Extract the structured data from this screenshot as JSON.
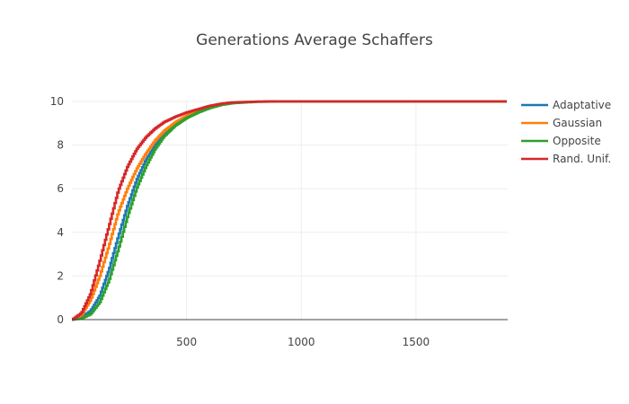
{
  "chart_data": {
    "type": "line",
    "title": "Generations Average Schaffers",
    "xlabel": "",
    "ylabel": "",
    "xlim": [
      0,
      1900
    ],
    "ylim": [
      0,
      10
    ],
    "x_ticks": [
      500,
      1000,
      1500
    ],
    "y_ticks": [
      0,
      2,
      4,
      6,
      8,
      10
    ],
    "grid": true,
    "legend_position": "right",
    "series": [
      {
        "name": "Adaptative",
        "color": "#1f77b4",
        "points": [
          [
            0,
            0
          ],
          [
            40,
            0.1
          ],
          [
            80,
            0.4
          ],
          [
            120,
            1.1
          ],
          [
            160,
            2.3
          ],
          [
            200,
            3.8
          ],
          [
            240,
            5.2
          ],
          [
            280,
            6.4
          ],
          [
            320,
            7.3
          ],
          [
            360,
            8.0
          ],
          [
            400,
            8.5
          ],
          [
            450,
            8.95
          ],
          [
            500,
            9.3
          ],
          [
            550,
            9.55
          ],
          [
            600,
            9.75
          ],
          [
            650,
            9.87
          ],
          [
            700,
            9.94
          ],
          [
            800,
            9.99
          ],
          [
            900,
            10
          ],
          [
            1900,
            10
          ]
        ]
      },
      {
        "name": "Gaussian",
        "color": "#ff7f0e",
        "points": [
          [
            0,
            0
          ],
          [
            40,
            0.2
          ],
          [
            80,
            0.9
          ],
          [
            120,
            2.0
          ],
          [
            160,
            3.4
          ],
          [
            200,
            4.9
          ],
          [
            240,
            6.0
          ],
          [
            280,
            6.9
          ],
          [
            320,
            7.6
          ],
          [
            360,
            8.2
          ],
          [
            400,
            8.65
          ],
          [
            450,
            9.05
          ],
          [
            500,
            9.35
          ],
          [
            550,
            9.58
          ],
          [
            600,
            9.75
          ],
          [
            650,
            9.87
          ],
          [
            700,
            9.94
          ],
          [
            800,
            9.99
          ],
          [
            900,
            10
          ],
          [
            1900,
            10
          ]
        ]
      },
      {
        "name": "Opposite",
        "color": "#2ca02c",
        "points": [
          [
            0,
            0
          ],
          [
            40,
            0.05
          ],
          [
            80,
            0.25
          ],
          [
            120,
            0.8
          ],
          [
            160,
            1.8
          ],
          [
            200,
            3.2
          ],
          [
            240,
            4.7
          ],
          [
            280,
            6.0
          ],
          [
            320,
            7.0
          ],
          [
            360,
            7.8
          ],
          [
            400,
            8.4
          ],
          [
            450,
            8.9
          ],
          [
            500,
            9.25
          ],
          [
            550,
            9.5
          ],
          [
            600,
            9.7
          ],
          [
            650,
            9.84
          ],
          [
            700,
            9.92
          ],
          [
            800,
            9.98
          ],
          [
            900,
            10
          ],
          [
            1900,
            10
          ]
        ]
      },
      {
        "name": "Rand. Unif.",
        "color": "#d62728",
        "points": [
          [
            0,
            0
          ],
          [
            40,
            0.3
          ],
          [
            80,
            1.2
          ],
          [
            120,
            2.7
          ],
          [
            160,
            4.3
          ],
          [
            200,
            5.9
          ],
          [
            240,
            7.0
          ],
          [
            280,
            7.8
          ],
          [
            320,
            8.35
          ],
          [
            360,
            8.75
          ],
          [
            400,
            9.05
          ],
          [
            450,
            9.3
          ],
          [
            500,
            9.5
          ],
          [
            550,
            9.65
          ],
          [
            600,
            9.8
          ],
          [
            650,
            9.9
          ],
          [
            700,
            9.96
          ],
          [
            800,
            9.99
          ],
          [
            900,
            10
          ],
          [
            1900,
            10
          ]
        ]
      }
    ]
  }
}
